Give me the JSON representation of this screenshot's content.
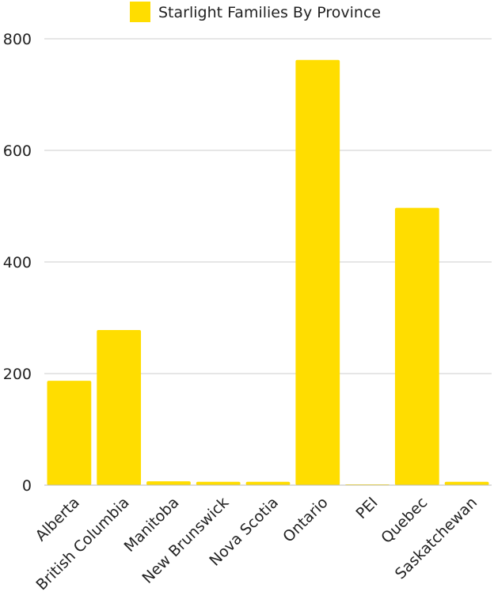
{
  "chart_data": {
    "type": "bar",
    "title": "",
    "xlabel": "",
    "ylabel": "",
    "categories": [
      "Alberta",
      "British Columbia",
      "Manitoba",
      "New Brunswick",
      "Nova Scotia",
      "Ontario",
      "PEI",
      "Quebec",
      "Saskatchewan"
    ],
    "series": [
      {
        "name": "Starlight Families By Province",
        "values": [
          187,
          278,
          7,
          6,
          6,
          762,
          1,
          497,
          6
        ],
        "color": "#FFDD00"
      }
    ],
    "ylim": [
      0,
      800
    ],
    "yticks": [
      "0",
      "200",
      "400",
      "600",
      "800"
    ],
    "grid": true,
    "legend_position": "top"
  }
}
